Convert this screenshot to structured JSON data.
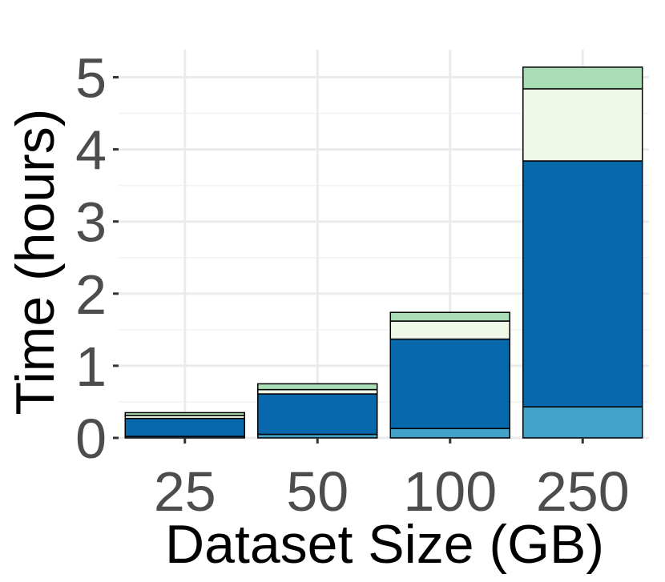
{
  "chart_data": {
    "type": "bar",
    "stacked": true,
    "title": "",
    "xlabel": "Dataset Size (GB)",
    "ylabel": "Time (hours)",
    "categories": [
      "25",
      "50",
      "100",
      "250"
    ],
    "ylim": [
      0,
      5.3
    ],
    "yticks": [
      0,
      1,
      2,
      3,
      4,
      5
    ],
    "grid": true,
    "legend": "none",
    "series": [
      {
        "color": "#43a2ca",
        "values": [
          0.02,
          0.05,
          0.13,
          0.43
        ]
      },
      {
        "color": "#0868ac",
        "values": [
          0.25,
          0.56,
          1.24,
          3.41
        ]
      },
      {
        "color": "#f0f9e8",
        "values": [
          0.04,
          0.06,
          0.25,
          1.0
        ]
      },
      {
        "color": "#a8ddb5",
        "values": [
          0.04,
          0.08,
          0.12,
          0.3
        ]
      }
    ]
  }
}
